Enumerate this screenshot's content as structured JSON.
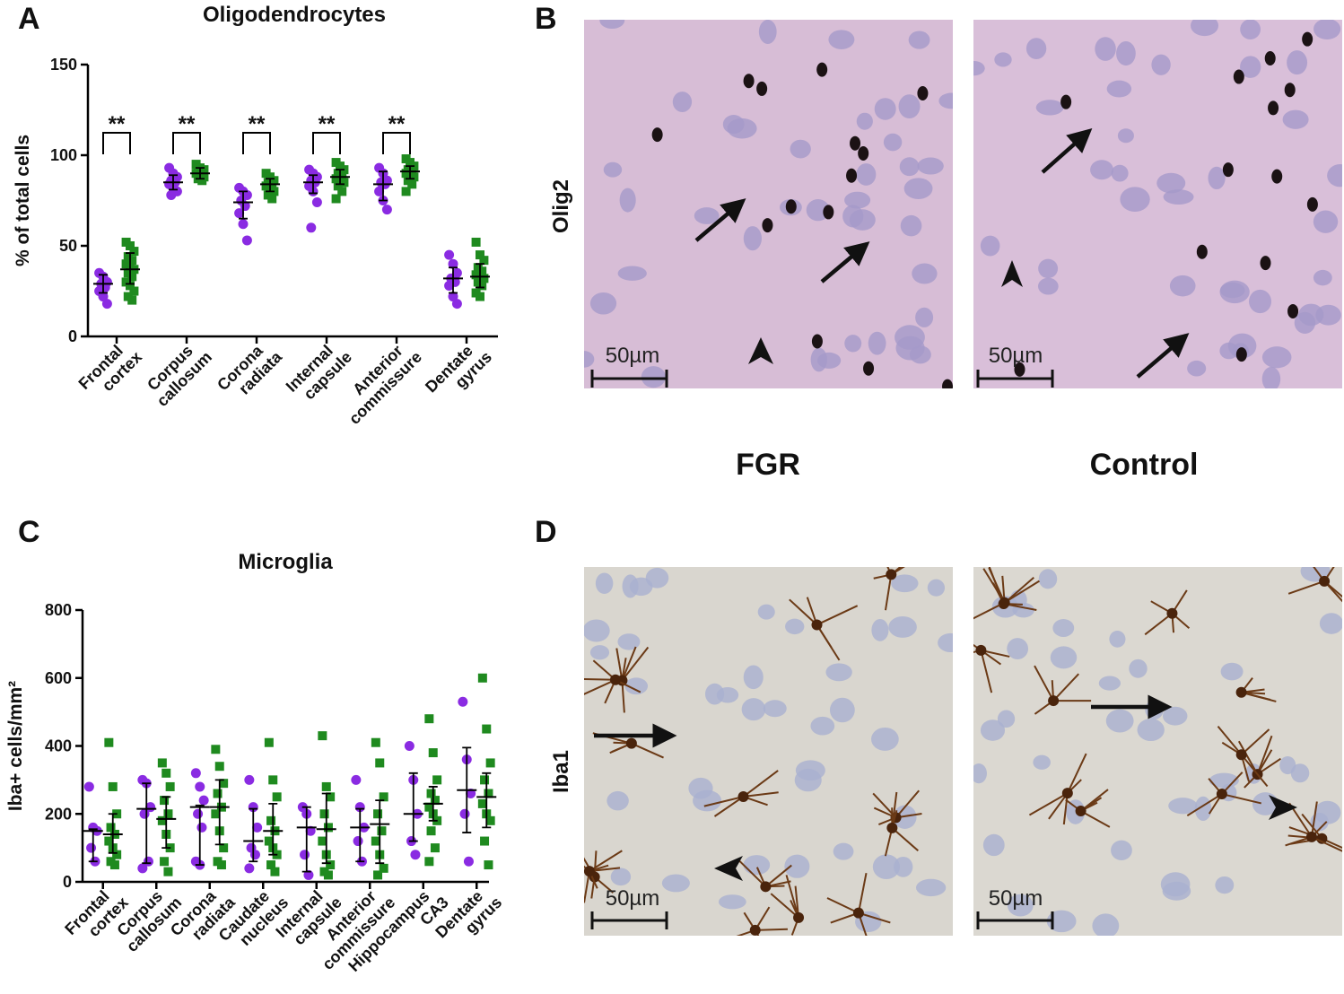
{
  "chart_data": [
    {
      "type": "dot",
      "title": "Oligodendrocytes",
      "y_label": "% of total cells",
      "categories": [
        "Frontal cortex",
        "Corpus callosum",
        "Corona radiata",
        "Internal capsule",
        "Anterior commissure",
        "Dentate gyrus"
      ],
      "ylim": [
        0,
        150
      ],
      "yticks": [
        0,
        50,
        100,
        150
      ],
      "significance": [
        "**",
        "**",
        "**",
        "**",
        "**",
        null
      ],
      "series": [
        {
          "name": "FGR",
          "color": "#8a2be2",
          "marker": "circle",
          "values": [
            [
              35,
              33,
              30,
              29,
              27,
              25,
              22,
              18
            ],
            [
              93,
              90,
              88,
              86,
              85,
              84,
              82,
              80,
              78
            ],
            [
              82,
              80,
              78,
              75,
              72,
              68,
              62,
              53
            ],
            [
              92,
              90,
              88,
              86,
              85,
              83,
              80,
              74,
              60
            ],
            [
              93,
              90,
              86,
              85,
              84,
              80,
              75,
              70
            ],
            [
              45,
              40,
              35,
              32,
              30,
              28,
              22,
              18
            ]
          ],
          "center": [
            29,
            85,
            74,
            85,
            84,
            32
          ],
          "low": [
            24,
            81,
            65,
            79,
            75,
            24
          ],
          "high": [
            34,
            89,
            80,
            89,
            91,
            38
          ]
        },
        {
          "name": "Control",
          "color": "#1f8a1f",
          "marker": "square",
          "values": [
            [
              52,
              50,
              47,
              44,
              42,
              40,
              38,
              37,
              35,
              33,
              30,
              28,
              25,
              22,
              20
            ],
            [
              95,
              93,
              92,
              91,
              90,
              90,
              89,
              88,
              87,
              86
            ],
            [
              90,
              88,
              86,
              85,
              84,
              83,
              82,
              80,
              78,
              76
            ],
            [
              96,
              94,
              92,
              90,
              88,
              87,
              86,
              85,
              83,
              80,
              76
            ],
            [
              98,
              96,
              94,
              92,
              91,
              90,
              89,
              88,
              86,
              84,
              80
            ],
            [
              52,
              45,
              42,
              38,
              36,
              34,
              33,
              32,
              30,
              28,
              24,
              22
            ]
          ],
          "center": [
            37,
            90,
            84,
            88,
            91,
            33
          ],
          "low": [
            29,
            87,
            80,
            84,
            87,
            27
          ],
          "high": [
            46,
            93,
            87,
            92,
            94,
            40
          ]
        }
      ]
    },
    {
      "type": "dot",
      "title": "Microglia",
      "y_label": "Iba+ cells/mm²",
      "categories": [
        "Frontal cortex",
        "Corpus callosum",
        "Corona radiata",
        "Caudate nucleus",
        "Internal capsule",
        "Anterior commissure",
        "Hippocampus CA3",
        "Dentate gyrus"
      ],
      "ylim": [
        0,
        800
      ],
      "yticks": [
        0,
        200,
        400,
        600,
        800
      ],
      "series": [
        {
          "color": "#8a2be2",
          "marker": "circle",
          "values": [
            [
              280,
              160,
              150,
              100,
              60
            ],
            [
              300,
              290,
              220,
              200,
              60,
              40
            ],
            [
              320,
              280,
              240,
              200,
              160,
              60,
              50
            ],
            [
              300,
              220,
              160,
              100,
              80,
              40
            ],
            [
              220,
              200,
              150,
              80,
              20
            ],
            [
              300,
              220,
              160,
              120,
              60
            ],
            [
              400,
              300,
              200,
              120,
              80
            ],
            [
              530,
              360,
              260,
              200,
              60
            ]
          ],
          "center": [
            150,
            215,
            220,
            120,
            160,
            160,
            200,
            270
          ],
          "low": [
            60,
            55,
            50,
            60,
            30,
            60,
            120,
            145
          ],
          "high": [
            155,
            290,
            225,
            215,
            220,
            215,
            320,
            395
          ]
        },
        {
          "color": "#1f8a1f",
          "marker": "square",
          "values": [
            [
              410,
              280,
              200,
              160,
              140,
              120,
              100,
              80,
              60,
              50
            ],
            [
              350,
              320,
              280,
              240,
              200,
              180,
              140,
              100,
              60,
              30
            ],
            [
              390,
              340,
              290,
              260,
              220,
              200,
              150,
              100,
              60,
              50
            ],
            [
              410,
              300,
              250,
              180,
              150,
              120,
              100,
              80,
              50,
              30
            ],
            [
              430,
              280,
              250,
              200,
              160,
              120,
              80,
              50,
              30,
              20
            ],
            [
              410,
              350,
              250,
              200,
              150,
              120,
              80,
              40,
              20
            ],
            [
              480,
              380,
              300,
              260,
              240,
              220,
              200,
              180,
              150,
              100,
              60
            ],
            [
              600,
              450,
              350,
              300,
              260,
              230,
              200,
              180,
              120,
              50
            ]
          ],
          "center": [
            140,
            185,
            220,
            150,
            155,
            170,
            230,
            250
          ],
          "low": [
            85,
            100,
            110,
            80,
            55,
            55,
            180,
            160
          ],
          "high": [
            200,
            250,
            300,
            230,
            260,
            240,
            280,
            320
          ]
        }
      ]
    }
  ],
  "panels": {
    "letters": [
      "A",
      "B",
      "C",
      "D"
    ],
    "B": {
      "stain": "Olig2",
      "scale_bar": "50µm"
    },
    "D": {
      "stain": "Iba1",
      "scale_bar": "50µm"
    }
  }
}
